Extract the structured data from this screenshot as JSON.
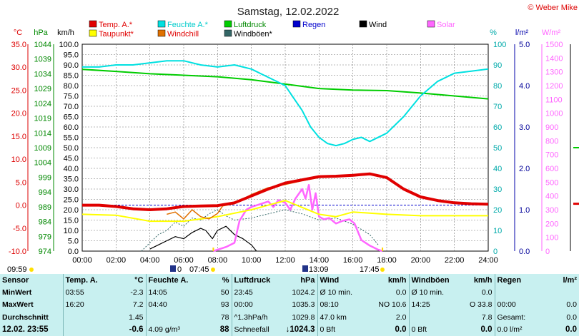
{
  "brand": "© Weber Mike",
  "chart_data": {
    "type": "line",
    "title": "Samstag, 12.02.2022",
    "axes": {
      "temp": {
        "label": "°C",
        "min": -10,
        "max": 35,
        "ticks": [
          "35.0",
          "30.0",
          "25.0",
          "20.0",
          "15.0",
          "10.0",
          "5.0",
          "0.0",
          "-5.0",
          "-10.0"
        ],
        "color": "#dd0000"
      },
      "hpa": {
        "label": "hPa",
        "min": 974,
        "max": 1044,
        "ticks": [
          "1044",
          "1039",
          "1034",
          "1029",
          "1024",
          "1019",
          "1014",
          "1009",
          "1004",
          "999",
          "994",
          "989",
          "984",
          "979",
          "974"
        ],
        "color": "#008800"
      },
      "kmh": {
        "label": "km/h",
        "min": 0,
        "max": 100,
        "ticks": [
          "100.0",
          "95.0",
          "90.0",
          "85.0",
          "80.0",
          "75.0",
          "70.0",
          "65.0",
          "60.0",
          "55.0",
          "50.0",
          "45.0",
          "40.0",
          "35.0",
          "30.0",
          "25.0",
          "20.0",
          "15.0",
          "10.0",
          "5.0",
          "0.0"
        ],
        "color": "#000000"
      },
      "pct": {
        "label": "%",
        "min": 0,
        "max": 100,
        "ticks": [
          "100",
          "90",
          "80",
          "70",
          "60",
          "50",
          "40",
          "30",
          "20",
          "10",
          "0"
        ],
        "color": "#00aaaa"
      },
      "rain": {
        "label": "l/m²",
        "min": 0,
        "max": 5,
        "ticks": [
          "5.0",
          "4.0",
          "3.0",
          "2.0",
          "1.0",
          "0.0"
        ],
        "color": "#0000aa"
      },
      "solar": {
        "label": "W/m²",
        "min": 0,
        "max": 1500,
        "ticks": [
          "1500",
          "1400",
          "1300",
          "1200",
          "1100",
          "1000",
          "900",
          "800",
          "700",
          "600",
          "500",
          "400",
          "300",
          "200",
          "100",
          "0"
        ],
        "color": "#ff66ff"
      }
    },
    "x_ticks": [
      "00:00",
      "02:00",
      "04:00",
      "06:00",
      "08:00",
      "10:00",
      "12:00",
      "14:00",
      "16:00",
      "18:00",
      "20:00",
      "22:00",
      "24:00"
    ],
    "legend": [
      {
        "name": "Temp. A.*",
        "color": "#e00000"
      },
      {
        "name": "Feuchte A.*",
        "color": "#00e0e0"
      },
      {
        "name": "Luftdruck",
        "color": "#00cc00"
      },
      {
        "name": "Regen",
        "color": "#0000cc"
      },
      {
        "name": "Wind",
        "color": "#000000"
      },
      {
        "name": "Solar",
        "color": "#ff66ff"
      },
      {
        "name": "Taupunkt*",
        "color": "#ffff00"
      },
      {
        "name": "Windchill",
        "color": "#e07000"
      },
      {
        "name": "Windböen*",
        "color": "#336666"
      }
    ],
    "series": [
      {
        "name": "Temp. A.*",
        "axis": "temp",
        "color": "#e00000",
        "x": [
          0,
          1,
          2,
          3,
          4,
          5,
          6,
          7,
          8,
          9,
          10,
          11,
          12,
          13,
          14,
          15,
          16,
          17,
          18,
          19,
          20,
          21,
          22,
          23,
          24
        ],
        "y": [
          0.0,
          0.0,
          -0.3,
          -0.8,
          -1.0,
          -0.8,
          -0.3,
          -0.2,
          -0.1,
          0.5,
          2.0,
          3.5,
          4.8,
          5.5,
          6.2,
          6.3,
          6.5,
          6.8,
          6.0,
          3.5,
          1.8,
          1.0,
          0.5,
          0.3,
          0.2
        ]
      },
      {
        "name": "Taupunkt*",
        "axis": "temp",
        "color": "#ffff00",
        "x": [
          0,
          2,
          4,
          6,
          8,
          10,
          12,
          14,
          15,
          16,
          18,
          20,
          22,
          24
        ],
        "y": [
          -2.0,
          -2.2,
          -3.5,
          -3.5,
          -2.5,
          -1.0,
          1.0,
          -2.0,
          -2.5,
          -1.5,
          -2.0,
          -2.3,
          -2.3,
          -2.3
        ]
      },
      {
        "name": "Windchill",
        "axis": "temp",
        "color": "#e07000",
        "x": [
          5,
          5.5,
          6,
          6.5,
          7,
          7.5,
          8,
          8.3,
          9,
          10,
          11,
          12,
          13,
          14,
          15,
          16,
          17,
          18
        ],
        "y": [
          -2.0,
          -1.5,
          -3.0,
          -1.0,
          -2.5,
          -3.0,
          -1.8,
          -0.2,
          0.3,
          2.3,
          3.8,
          4.5,
          5.3,
          6.0,
          6.2,
          6.5,
          6.7,
          6.0
        ]
      },
      {
        "name": "Feuchte A.*",
        "axis": "pct",
        "color": "#00e0e0",
        "x": [
          0,
          1,
          2,
          3,
          4,
          5,
          6,
          7,
          8,
          9,
          9.5,
          10,
          10.5,
          11,
          11.5,
          12,
          12.5,
          13,
          13.5,
          14,
          14.5,
          15,
          15.5,
          16,
          16.5,
          17,
          18,
          19,
          20,
          21,
          22,
          23,
          24
        ],
        "y": [
          89,
          89,
          90,
          90,
          91,
          92,
          92,
          90,
          89,
          90,
          89,
          88,
          86,
          84,
          82,
          80,
          74,
          68,
          60,
          55,
          52,
          51,
          52,
          54,
          55,
          53,
          57,
          65,
          75,
          82,
          86,
          87,
          88
        ]
      },
      {
        "name": "Luftdruck",
        "axis": "hpa",
        "color": "#00cc00",
        "x": [
          0,
          2,
          4,
          6,
          8,
          10,
          12,
          14,
          16,
          18,
          20,
          22,
          24
        ],
        "y": [
          1035.5,
          1034.8,
          1034.0,
          1033.5,
          1033.0,
          1032.0,
          1030.5,
          1029.0,
          1028.5,
          1028.3,
          1027.5,
          1026.5,
          1025.5
        ]
      },
      {
        "name": "Wind",
        "axis": "kmh",
        "color": "#000000",
        "x": [
          4,
          4.5,
          5,
          5.5,
          6,
          6.5,
          7,
          7.3,
          7.7,
          8,
          8.5,
          9,
          9.5,
          10,
          10.3
        ],
        "y": [
          1,
          3,
          5,
          7,
          6,
          9,
          11,
          10,
          6,
          10,
          12,
          8,
          6,
          3,
          0
        ]
      },
      {
        "name": "Windböen*",
        "axis": "kmh",
        "color": "#336666",
        "x": [
          3.5,
          4,
          4.5,
          5,
          5.5,
          6,
          6.5,
          7,
          7.5,
          8,
          8.5,
          9,
          10,
          11,
          12,
          13,
          14,
          15,
          16,
          17,
          17.5
        ],
        "y": [
          0,
          4,
          8,
          10,
          14,
          12,
          16,
          15,
          18,
          20,
          17,
          15,
          16,
          18,
          20,
          18,
          15,
          16,
          13,
          8,
          3
        ]
      },
      {
        "name": "Solar",
        "axis": "solar",
        "color": "#ff66ff",
        "x": [
          7.75,
          8.5,
          9,
          9.3,
          9.7,
          10,
          10.5,
          11,
          11.3,
          11.6,
          12,
          12.3,
          12.6,
          13,
          13.2,
          13.4,
          13.6,
          13.8,
          14,
          14.3,
          14.6,
          15,
          15.4,
          15.8,
          16.1,
          16.5,
          17,
          17.5,
          17.75
        ],
        "y": [
          0,
          30,
          60,
          220,
          300,
          320,
          340,
          360,
          320,
          370,
          350,
          300,
          380,
          450,
          380,
          480,
          300,
          420,
          250,
          230,
          240,
          200,
          220,
          230,
          200,
          80,
          40,
          10,
          0
        ]
      }
    ],
    "marker_lines": {
      "temp_zero": 0.0,
      "humidity_line": 24,
      "sunrise": "07:45",
      "sunset": "17:45",
      "moonset": "13:09"
    },
    "markers": {
      "left_time": "09:59",
      "sunrise_label": "07:45",
      "moon_label": "13:09",
      "sunset_label": "17:45",
      "moon_truncated": "0"
    }
  },
  "stats": {
    "header": [
      "Sensor",
      "Temp. A.",
      "°C",
      "Feuchte A.",
      "%",
      "Luftdruck",
      "hPa",
      "Wind",
      "km/h",
      "Windböen",
      "km/h",
      "Regen",
      "l/m²"
    ],
    "rows": [
      [
        "MinWert",
        "03:55",
        "-2.3",
        "14:05",
        "50",
        "23:45",
        "1024.2",
        "Ø 10 min.",
        "0.0",
        "Ø 10 min.",
        "0.0",
        "",
        ""
      ],
      [
        "MaxWert",
        "16:20",
        "7.2",
        "04:40",
        "93",
        "00:00",
        "1035.3",
        "08:10",
        "NO 10.6",
        "14:25",
        "O 33.8",
        "00:00",
        "0.0"
      ],
      [
        "Durchschnitt",
        "",
        "1.45",
        "",
        "78",
        "^1.3hPa/h",
        "1029.8",
        "47.0 km",
        "2.0",
        "",
        "7.8",
        "Gesamt:",
        "0.0"
      ],
      [
        "12.02.  23:55",
        "",
        "-0.6",
        "4.09 g/m³",
        "88",
        "Schneefall",
        "↓1024.3",
        "0 Bft",
        "0.0",
        "0 Bft",
        "0.0",
        "0.0 l/m²",
        "0.0"
      ]
    ]
  }
}
